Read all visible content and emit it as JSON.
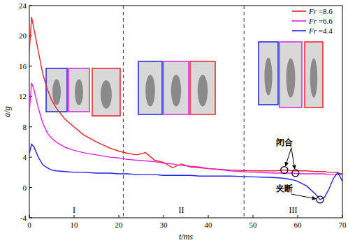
{
  "chart_data": {
    "type": "line",
    "x_label": "t/ms",
    "y_label": "a/g",
    "x": [
      0,
      0.5,
      1,
      2,
      3,
      4,
      5,
      6,
      8,
      10,
      12,
      15,
      18,
      20,
      22,
      24,
      26,
      28,
      30,
      32,
      34,
      36,
      38,
      40,
      45,
      50,
      55,
      57,
      59,
      60,
      62,
      64,
      65,
      66,
      67,
      68,
      69,
      70
    ],
    "series": [
      {
        "name": "Fr =8.6",
        "color": "#e8232a",
        "values": [
          18,
          22.5,
          21,
          18,
          15,
          13,
          11.5,
          10.5,
          9,
          8,
          7,
          6,
          5.2,
          4.8,
          4.5,
          4.3,
          4.6,
          3.6,
          3.3,
          2.6,
          3.1,
          2.7,
          2.6,
          2.5,
          2.3,
          2.2,
          2.2,
          2.3,
          2.2,
          2.2,
          2.2,
          2.1,
          2.1,
          2.1,
          2.0,
          2.0,
          1.9,
          1.8
        ]
      },
      {
        "name": "Fr =6.6",
        "color": "#e020e0",
        "values": [
          10,
          13.8,
          13,
          10.5,
          8.5,
          7.2,
          6.5,
          6,
          5.3,
          4.9,
          4.6,
          4.3,
          4.0,
          3.9,
          3.7,
          3.6,
          3.5,
          3.4,
          3.2,
          3.1,
          2.9,
          2.8,
          2.7,
          2.5,
          2.2,
          2.0,
          1.9,
          1.9,
          1.9,
          1.8,
          1.8,
          1.8,
          1.8,
          1.8,
          1.7,
          1.7,
          1.7,
          1.7
        ]
      },
      {
        "name": "Fr =4.4",
        "color": "#2020e8",
        "values": [
          4.5,
          5.7,
          5.4,
          4,
          3,
          2.6,
          2.3,
          2.2,
          2.1,
          2,
          2,
          1.9,
          1.9,
          1.8,
          1.8,
          1.7,
          1.7,
          1.7,
          1.6,
          1.6,
          1.6,
          1.6,
          1.5,
          1.5,
          1.5,
          1.4,
          1.3,
          1.2,
          1.0,
          0.8,
          0.2,
          -0.9,
          -1.6,
          -1.3,
          -0.2,
          1.2,
          2.0,
          0.8
        ]
      }
    ],
    "xlim": [
      0,
      70
    ],
    "xticks": [
      0,
      10,
      20,
      30,
      40,
      50,
      60,
      70
    ],
    "ylim": [
      -4,
      24
    ],
    "yticks": [
      -4,
      0,
      4,
      8,
      12,
      16,
      20,
      24
    ],
    "legend": "top-right",
    "grid": false,
    "dividers": [
      21,
      48
    ],
    "regions": [
      {
        "text": "I",
        "x": 10,
        "y": -3
      },
      {
        "text": "II",
        "x": 34,
        "y": -3
      },
      {
        "text": "III",
        "x": 59,
        "y": -3
      }
    ],
    "annotations": [
      {
        "text": "闭合",
        "x": 57,
        "y": 5.6,
        "points": [
          [
            57,
            2.3
          ],
          [
            59.5,
            1.9
          ]
        ]
      },
      {
        "text": "夹断",
        "x": 57,
        "y": -0.5,
        "points": [
          [
            65,
            -1.6
          ]
        ]
      }
    ]
  }
}
